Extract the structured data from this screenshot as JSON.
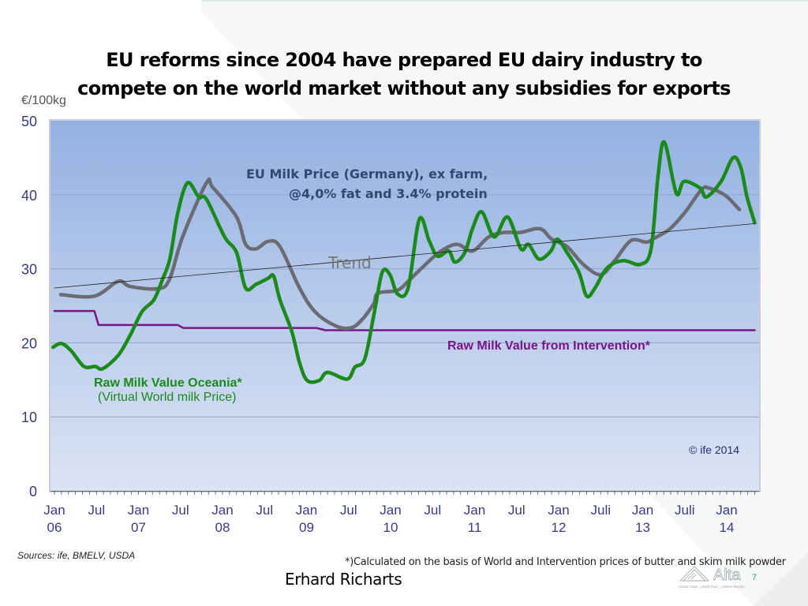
{
  "slide": {
    "title_line1": "EU reforms since 2004 have prepared EU dairy industry to",
    "title_line2": "compete on the world market without any subsidies for exports",
    "sources": "Sources: ife, BMELV, USDA",
    "footnote": "*)Calculated on the basis of World and Intervention prices of butter and skim milk powder",
    "author": "Erhard Richarts",
    "page_number": "7",
    "logo_text": "Alta",
    "logo_tagline": "Create Value △ Build Trust △ Deliver Results"
  },
  "chart_data": {
    "type": "line",
    "title": "",
    "ylabel": "€/100kg",
    "xlabel": "",
    "ylim": [
      0,
      50
    ],
    "yticks": [
      0,
      10,
      20,
      30,
      40,
      50
    ],
    "xlim_months": [
      0,
      102
    ],
    "xticks": [
      {
        "month": 0,
        "line1": "Jan",
        "line2": "06"
      },
      {
        "month": 6,
        "line1": "Jul",
        "line2": ""
      },
      {
        "month": 12,
        "line1": "Jan",
        "line2": "07"
      },
      {
        "month": 18,
        "line1": "Jul",
        "line2": ""
      },
      {
        "month": 24,
        "line1": "Jan",
        "line2": "08"
      },
      {
        "month": 30,
        "line1": "Jul",
        "line2": ""
      },
      {
        "month": 36,
        "line1": "Jan",
        "line2": "09"
      },
      {
        "month": 42,
        "line1": "Jul",
        "line2": ""
      },
      {
        "month": 48,
        "line1": "Jan",
        "line2": "10"
      },
      {
        "month": 54,
        "line1": "Jul",
        "line2": ""
      },
      {
        "month": 60,
        "line1": "Jan",
        "line2": "11"
      },
      {
        "month": 66,
        "line1": "Jul",
        "line2": ""
      },
      {
        "month": 72,
        "line1": "Jan",
        "line2": "12"
      },
      {
        "month": 78,
        "line1": "Juli",
        "line2": ""
      },
      {
        "month": 84,
        "line1": "Jan",
        "line2": "13"
      },
      {
        "month": 90,
        "line1": "Juli",
        "line2": ""
      },
      {
        "month": 96,
        "line1": "Jan",
        "line2": "14"
      }
    ],
    "grid": true,
    "series": [
      {
        "name": "EU Milk Price (Germany), ex farm, @4,0% fat and 3.4% protein",
        "color": "#6b6b73",
        "x": [
          0.9,
          5.7,
          9.1,
          10.8,
          14.7,
          16.4,
          18.3,
          21.7,
          22.6,
          26,
          27.3,
          28.8,
          30.5,
          32.2,
          35,
          37.2,
          40.1,
          42.3,
          43.9,
          45.6,
          46.2,
          49,
          50.7,
          53,
          55.2,
          57.5,
          59.7,
          62,
          64.2,
          66.5,
          68.7,
          69.8,
          71,
          73.2,
          75.5,
          78,
          80,
          82.3,
          84.5,
          85.6,
          87.9,
          90.1,
          92.4,
          93.5,
          95.8,
          97.8
        ],
        "values": [
          26.5,
          26.3,
          28.3,
          27.6,
          27.3,
          28.5,
          34.3,
          41.6,
          41,
          37,
          33.3,
          32.7,
          33.7,
          33,
          27.4,
          24.2,
          22.3,
          22,
          23.1,
          25.3,
          26.7,
          27.1,
          28.5,
          30.6,
          32.4,
          33.3,
          32.4,
          34.3,
          34.9,
          34.9,
          35.4,
          35.2,
          34,
          33,
          30.6,
          29.2,
          31.1,
          33.8,
          33.6,
          34.1,
          35.4,
          37.7,
          40.7,
          40.9,
          39.9,
          38
        ]
      },
      {
        "name": "Raw Milk Value Oceania* (Virtual World milk Price)",
        "color": "#1a8a1a",
        "x": [
          -0.2,
          1,
          2.4,
          4.2,
          5.8,
          6.9,
          9.1,
          10.8,
          12.5,
          14.2,
          15.4,
          16.5,
          17.6,
          19,
          20.6,
          21.7,
          24.3,
          26,
          27.3,
          28.8,
          30.5,
          31.3,
          32.2,
          33.9,
          35,
          36.1,
          37.8,
          39,
          41.8,
          42.9,
          44.3,
          45.6,
          46.8,
          47.9,
          49,
          50.5,
          52.1,
          53.5,
          54.7,
          56.3,
          57.2,
          58.6,
          59.7,
          61,
          62.8,
          64.7,
          66.6,
          67.7,
          69.2,
          70.9,
          71.8,
          73.2,
          74.9,
          76,
          77.2,
          78.9,
          81.2,
          83.7,
          85.2,
          86.2,
          87.1,
          88.8,
          89.9,
          92.2,
          93.1,
          95.2,
          96.9,
          98,
          98.9,
          100
        ],
        "values": [
          19.4,
          19.9,
          18.9,
          16.8,
          16.8,
          16.5,
          18.3,
          21,
          24.2,
          25.8,
          28.5,
          31.4,
          37.5,
          41.6,
          39.7,
          39.4,
          34.3,
          32.2,
          27.4,
          27.9,
          28.7,
          29,
          25.8,
          21.5,
          17.3,
          14.9,
          14.9,
          16,
          15.1,
          16.7,
          17.8,
          23.7,
          29.5,
          29.2,
          26.6,
          27.4,
          36.7,
          33.8,
          31.7,
          32.4,
          30.9,
          32.2,
          35.4,
          37.7,
          34.3,
          37,
          32.7,
          33.3,
          31.3,
          32.4,
          34,
          32.2,
          29.5,
          26.3,
          27.4,
          30.1,
          31.1,
          30.6,
          32.7,
          42.6,
          47.1,
          40.2,
          41.8,
          40.9,
          39.7,
          41.8,
          45,
          43.7,
          39.7,
          36.2
        ]
      },
      {
        "name": "Raw Milk Value from Intervention*",
        "color": "#7a1487",
        "x": [
          0,
          5.7,
          6.3,
          17.6,
          18.4,
          37.4,
          38.7,
          100
        ],
        "values": [
          24.3,
          24.3,
          22.4,
          22.4,
          22,
          22,
          21.7,
          21.7
        ]
      },
      {
        "name": "Trend",
        "color": "#222222",
        "x": [
          0,
          100
        ],
        "values": [
          27.4,
          36.1
        ]
      }
    ],
    "annotations": [
      {
        "id": "eu_line1",
        "text": "EU Milk Price (Germany), ex farm,",
        "color": "#2f4a6e"
      },
      {
        "id": "eu_line2",
        "text": "@4,0% fat and 3.4% protein",
        "color": "#2f4a6e"
      },
      {
        "id": "trend",
        "text": "Trend",
        "color": "#777777"
      },
      {
        "id": "intervention",
        "text": "Raw Milk Value from Intervention*",
        "color": "#7a1487"
      },
      {
        "id": "oceania_line1",
        "text": "Raw Milk Value Oceania*",
        "color": "#1a8a1a"
      },
      {
        "id": "oceania_line2",
        "text": "(Virtual World milk Price)",
        "color": "#1a8a1a"
      },
      {
        "id": "copyright",
        "text": "© ife 2014",
        "color": "#2a2a7a"
      }
    ],
    "legend": "none (inline labels)"
  }
}
